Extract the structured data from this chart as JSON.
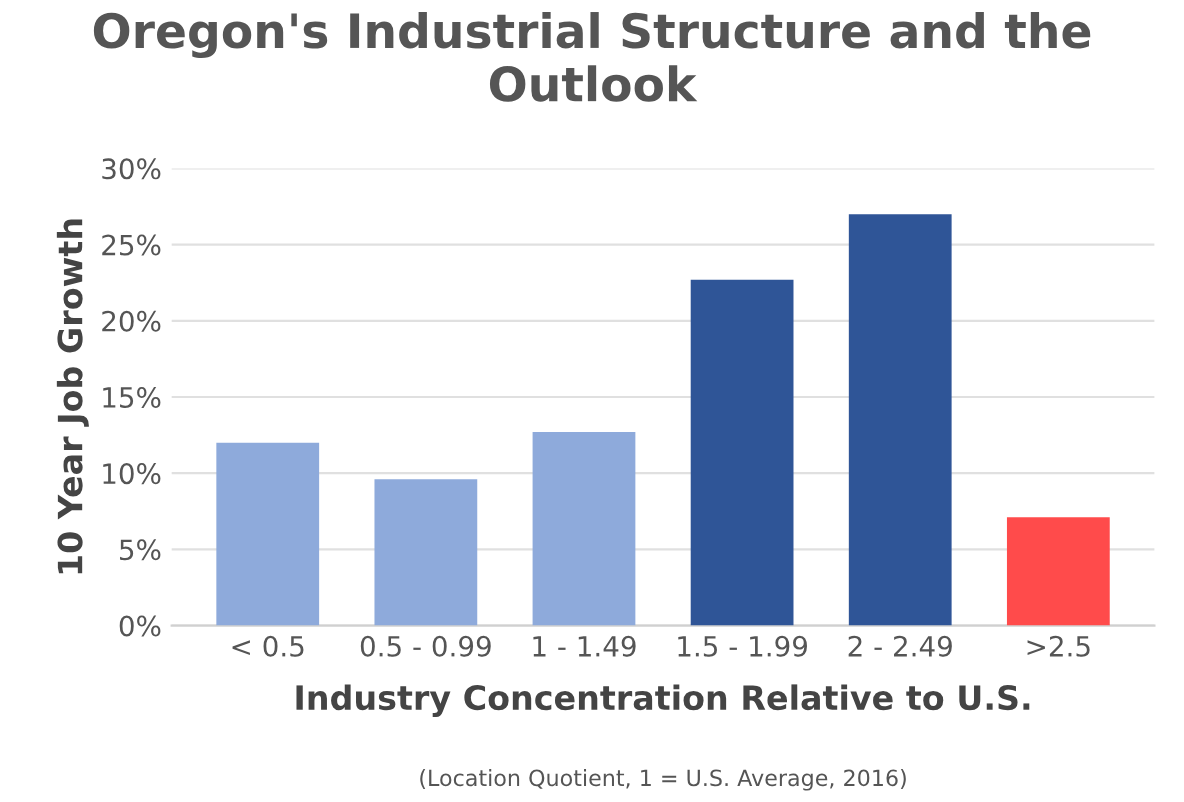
{
  "chart_data": {
    "type": "bar",
    "title": "Oregon's Industrial Structure and the Outlook",
    "categories": [
      "< 0.5",
      "0.5 - 0.99",
      "1 - 1.49",
      "1.5 - 1.99",
      "2 - 2.49",
      ">2.5"
    ],
    "values": [
      12.0,
      9.6,
      12.7,
      22.7,
      27.0,
      7.1
    ],
    "colors": [
      "#8eaadb",
      "#8eaadb",
      "#8eaadb",
      "#2f5597",
      "#2f5597",
      "#ff4b4b"
    ],
    "xlabel": "Industry Concentration Relative to U.S.",
    "ylabel": "10 Year Job Growth",
    "annotations": [
      "(Location Quotient, 1 = U.S. Average, 2016)"
    ],
    "ylim": [
      0,
      30
    ],
    "yticks": [
      {
        "value": 0,
        "label": "0%"
      },
      {
        "value": 5,
        "label": "5%"
      },
      {
        "value": 10,
        "label": "10%"
      },
      {
        "value": 15,
        "label": "15%"
      },
      {
        "value": 20,
        "label": "20%"
      },
      {
        "value": 25,
        "label": "25%"
      },
      {
        "value": 30,
        "label": "30%"
      }
    ],
    "grid": "y"
  }
}
